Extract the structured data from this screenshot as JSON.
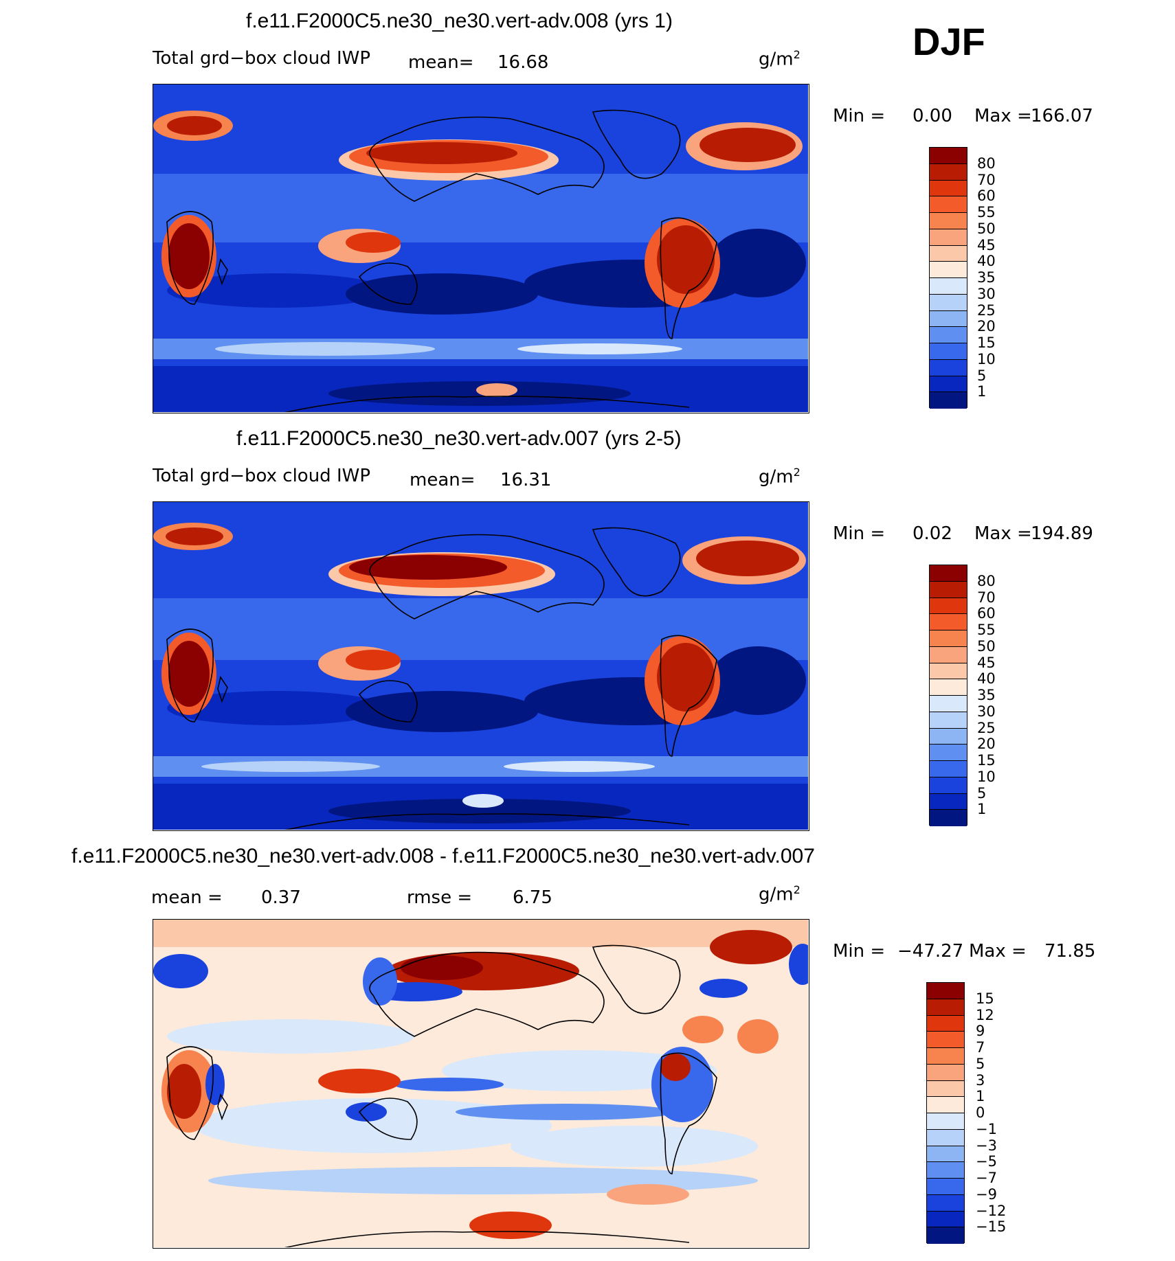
{
  "season": "DJF",
  "panels": [
    {
      "title": "f.e11.F2000C5.ne30_ne30.vert-adv.008 (yrs 1)",
      "left_label": "Total grd−box cloud IWP",
      "stat_label": "mean=",
      "stat_value": "16.68",
      "units": "g/m",
      "units_exp": "2",
      "min_label": "Min =",
      "min_value": "0.00",
      "max_label": "Max =",
      "max_value": "166.07",
      "colorbar": {
        "labels": [
          "80",
          "70",
          "60",
          "55",
          "50",
          "45",
          "40",
          "35",
          "30",
          "25",
          "20",
          "15",
          "10",
          "5",
          "1"
        ],
        "colors": [
          "#8b0000",
          "#b81d04",
          "#e0360e",
          "#f35c2a",
          "#f7834f",
          "#f9a47c",
          "#fbc8a9",
          "#fdeadb",
          "#d9e9fb",
          "#b6d2f8",
          "#8db5f4",
          "#5f8ff0",
          "#3868eb",
          "#1a43dd",
          "#0727be",
          "#021682"
        ]
      }
    },
    {
      "title": "f.e11.F2000C5.ne30_ne30.vert-adv.007 (yrs 2-5)",
      "left_label": "Total grd−box cloud IWP",
      "stat_label": "mean=",
      "stat_value": "16.31",
      "units": "g/m",
      "units_exp": "2",
      "min_label": "Min =",
      "min_value": "0.02",
      "max_label": "Max =",
      "max_value": "194.89",
      "colorbar": {
        "labels": [
          "80",
          "70",
          "60",
          "55",
          "50",
          "45",
          "40",
          "35",
          "30",
          "25",
          "20",
          "15",
          "10",
          "5",
          "1"
        ],
        "colors": [
          "#8b0000",
          "#b81d04",
          "#e0360e",
          "#f35c2a",
          "#f7834f",
          "#f9a47c",
          "#fbc8a9",
          "#fdeadb",
          "#d9e9fb",
          "#b6d2f8",
          "#8db5f4",
          "#5f8ff0",
          "#3868eb",
          "#1a43dd",
          "#0727be",
          "#021682"
        ]
      }
    },
    {
      "title": "f.e11.F2000C5.ne30_ne30.vert-adv.008 - f.e11.F2000C5.ne30_ne30.vert-adv.007",
      "left_label": "mean =",
      "left_value": "0.37",
      "stat_label": "rmse =",
      "stat_value": "6.75",
      "units": "g/m",
      "units_exp": "2",
      "min_label": "Min =",
      "min_value": "−47.27",
      "max_label": "Max =",
      "max_value": "71.85",
      "colorbar": {
        "labels": [
          "15",
          "12",
          "9",
          "7",
          "5",
          "3",
          "1",
          "0",
          "−1",
          "−3",
          "−5",
          "−7",
          "−9",
          "−12",
          "−15"
        ],
        "colors": [
          "#8b0000",
          "#b81d04",
          "#e0360e",
          "#f35c2a",
          "#f7834f",
          "#f9a47c",
          "#fbc8a9",
          "#fdeadb",
          "#d9e9fb",
          "#b6d2f8",
          "#8db5f4",
          "#5f8ff0",
          "#3868eb",
          "#1a43dd",
          "#0727be",
          "#021682"
        ]
      }
    }
  ]
}
